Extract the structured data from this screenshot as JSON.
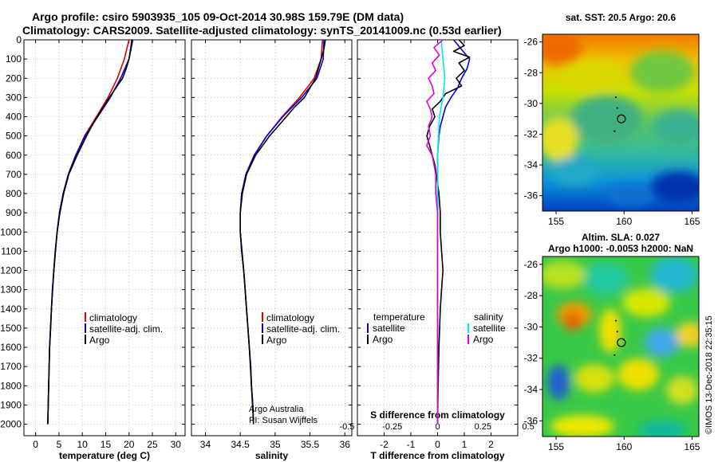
{
  "header": {
    "line1": "Argo profile: csiro 5903935_105 09-Oct-2014 30.98S 159.79E (DM data)",
    "line2": "Climatology: CARS2009. Satellite-adjusted climatology: synTS_20141009.nc (0.53d earlier)"
  },
  "credits": {
    "line1": "Argo Australia",
    "line2": "PI: Susan Wijffels",
    "imos": "©IMOS 13-Dec-2018 22:35:15"
  },
  "colors": {
    "climatology": "#e00000",
    "satellite_adj": "#0000e0",
    "argo": "#000000",
    "sat_salinity": "#00e8e8",
    "argo_salinity_diff": "#e000e0"
  },
  "chart_data": [
    {
      "type": "line",
      "title": "",
      "xlabel": "temperature (deg C)",
      "ylabel": "",
      "xlim": [
        -2.5,
        32
      ],
      "ylim": [
        2060,
        0
      ],
      "xticks": [
        0,
        5,
        10,
        15,
        20,
        25,
        30
      ],
      "yticks": [
        0,
        100,
        200,
        300,
        400,
        500,
        600,
        700,
        800,
        900,
        1000,
        1100,
        1200,
        1300,
        1400,
        1500,
        1600,
        1700,
        1800,
        1900,
        2000
      ],
      "legend": [
        "climatology",
        "satellite-adj. clim.",
        "Argo"
      ],
      "series": [
        {
          "name": "climatology",
          "depth": [
            0,
            100,
            200,
            300,
            400,
            500,
            600,
            700,
            800,
            900,
            1000,
            1100,
            1200,
            1300,
            1400,
            1500,
            1600,
            1700,
            1800,
            1900,
            2000
          ],
          "values": [
            20.0,
            19.0,
            17.5,
            15.5,
            13.0,
            10.5,
            8.6,
            7.0,
            5.9,
            5.1,
            4.6,
            4.2,
            3.9,
            3.6,
            3.4,
            3.2,
            3.0,
            2.9,
            2.8,
            2.7,
            2.6
          ]
        },
        {
          "name": "satellite-adj. clim.",
          "depth": [
            0,
            100,
            200,
            300,
            400,
            500,
            600,
            700,
            800,
            900,
            1000,
            1100,
            1200,
            1300,
            1400,
            1500,
            1600,
            1700,
            1800,
            1900,
            2000
          ],
          "values": [
            20.6,
            20.0,
            18.2,
            16.0,
            13.3,
            10.6,
            8.6,
            7.0,
            5.9,
            5.1,
            4.6,
            4.2,
            3.9,
            3.6,
            3.4,
            3.2,
            3.0,
            2.9,
            2.8,
            2.7,
            2.6
          ]
        },
        {
          "name": "Argo",
          "depth": [
            0,
            50,
            100,
            150,
            200,
            250,
            300,
            350,
            400,
            450,
            500,
            600,
            700,
            800,
            900,
            1000,
            1200,
            1400,
            1600,
            1800,
            2000
          ],
          "values": [
            20.8,
            20.4,
            20.0,
            19.4,
            18.6,
            17.2,
            15.8,
            14.5,
            13.2,
            12.0,
            10.9,
            8.9,
            7.1,
            6.0,
            5.2,
            4.6,
            3.9,
            3.4,
            3.0,
            2.8,
            2.6
          ]
        }
      ]
    },
    {
      "type": "line",
      "title": "",
      "xlabel": "salinity",
      "ylabel": "",
      "xlim": [
        33.8,
        36.1
      ],
      "ylim": [
        2060,
        0
      ],
      "xticks": [
        34,
        34.5,
        35,
        35.5,
        36
      ],
      "legend": [
        "climatology",
        "satellite-adj. clim.",
        "Argo"
      ],
      "series": [
        {
          "name": "climatology",
          "depth": [
            0,
            100,
            200,
            300,
            400,
            500,
            600,
            700,
            800,
            900,
            1000,
            1100,
            1200,
            1300,
            1400,
            1500,
            1600,
            1700,
            1800,
            1900,
            2000
          ],
          "values": [
            35.68,
            35.66,
            35.56,
            35.35,
            35.1,
            34.88,
            34.7,
            34.58,
            34.52,
            34.5,
            34.5,
            34.52,
            34.55,
            34.57,
            34.59,
            34.61,
            34.63,
            34.65,
            34.66,
            34.68,
            34.69
          ]
        },
        {
          "name": "satellite-adj. clim.",
          "depth": [
            0,
            100,
            200,
            300,
            400,
            500,
            600,
            700,
            800,
            900,
            1000,
            1100,
            1200,
            1300,
            1400,
            1500,
            1600,
            1700,
            1800,
            1900,
            2000
          ],
          "values": [
            35.7,
            35.69,
            35.6,
            35.38,
            35.11,
            34.88,
            34.7,
            34.58,
            34.52,
            34.5,
            34.5,
            34.52,
            34.55,
            34.57,
            34.59,
            34.61,
            34.63,
            34.65,
            34.66,
            34.68,
            34.69
          ]
        },
        {
          "name": "Argo",
          "depth": [
            0,
            50,
            100,
            150,
            200,
            250,
            300,
            350,
            400,
            450,
            500,
            600,
            700,
            800,
            900,
            1000,
            1200,
            1400,
            1600,
            1800,
            2000
          ],
          "values": [
            35.72,
            35.7,
            35.66,
            35.62,
            35.58,
            35.5,
            35.42,
            35.28,
            35.16,
            35.04,
            34.92,
            34.72,
            34.59,
            34.53,
            34.5,
            34.5,
            34.55,
            34.59,
            34.63,
            34.66,
            34.69
          ]
        }
      ]
    },
    {
      "type": "line",
      "title": "",
      "xlabel": "T difference from climatology",
      "xlabel_top": "S difference from climatology",
      "ylabel": "",
      "xlim": [
        -3,
        3
      ],
      "ylim": [
        2060,
        0
      ],
      "xticks": [
        -2,
        -1,
        0,
        1,
        2
      ],
      "xticks_top": [
        "-0.5",
        "-0.25",
        "0",
        "0.25",
        "0.5"
      ],
      "legend_left_title": "temperature",
      "legend_right_title": "salinity",
      "legend": [
        "satellite",
        "Argo",
        "satellite",
        "Argo"
      ],
      "series": [
        {
          "name": "T satellite",
          "depth": [
            0,
            50,
            100,
            150,
            200,
            250,
            300,
            350,
            400,
            450,
            500,
            600,
            700,
            800,
            900,
            1000,
            1200,
            1400,
            1600,
            1800,
            2000
          ],
          "values": [
            0.6,
            0.9,
            1.2,
            1.1,
            0.9,
            0.75,
            0.5,
            0.3,
            0.2,
            0.1,
            0.05,
            0,
            0,
            0,
            0,
            0,
            0,
            0,
            0,
            0,
            0
          ]
        },
        {
          "name": "T Argo",
          "depth": [
            0,
            30,
            60,
            90,
            120,
            160,
            200,
            240,
            280,
            320,
            360,
            400,
            450,
            500,
            550,
            600,
            650,
            700,
            800,
            900,
            1000,
            1100,
            1200,
            1300,
            1400,
            1600,
            1800,
            2000
          ],
          "values": [
            0.8,
            1.0,
            0.6,
            1.2,
            0.8,
            1.0,
            0.7,
            0.9,
            0.3,
            0.1,
            -0.2,
            -0.1,
            -0.3,
            -0.4,
            -0.3,
            -0.2,
            -0.1,
            -0.05,
            0.05,
            0.1,
            0.1,
            0.15,
            0.2,
            0.15,
            0.1,
            0.05,
            0.02,
            0
          ]
        },
        {
          "name": "S satellite",
          "depth": [
            0,
            100,
            200,
            300,
            400,
            600,
            800,
            1000,
            1200,
            1400,
            1600,
            1800,
            2000
          ],
          "values": [
            0.02,
            0.03,
            0.04,
            0.03,
            0.01,
            0,
            0,
            0,
            0,
            0,
            0,
            0,
            0
          ]
        },
        {
          "name": "S Argo",
          "depth": [
            0,
            40,
            80,
            120,
            160,
            200,
            240,
            280,
            320,
            360,
            400,
            450,
            500,
            550,
            600,
            650,
            700,
            800,
            900,
            1000,
            1200,
            1400,
            1600,
            1800,
            2000
          ],
          "values": [
            0.03,
            -0.02,
            0.01,
            -0.03,
            -0.01,
            -0.05,
            -0.03,
            -0.02,
            -0.06,
            -0.04,
            -0.03,
            -0.05,
            -0.04,
            -0.06,
            -0.03,
            -0.02,
            -0.01,
            -0.01,
            0,
            0,
            0,
            0,
            0,
            0,
            0
          ]
        }
      ]
    },
    {
      "type": "heatmap",
      "title": "sat. SST: 20.5 Argo: 20.6",
      "xlim": [
        154,
        165.5
      ],
      "ylim": [
        -37,
        -25.5
      ],
      "xticks": [
        155,
        160,
        165
      ],
      "yticks": [
        -26,
        -28,
        -30,
        -32,
        -34,
        -36
      ],
      "marker_position": [
        159.8,
        -31.0
      ]
    },
    {
      "type": "heatmap",
      "title": "Altim. SLA: 0.027",
      "subtitle": "Argo h1000: -0.0053 h2000: NaN",
      "xlim": [
        154,
        165.5
      ],
      "ylim": [
        -37,
        -25.5
      ],
      "xticks": [
        155,
        160,
        165
      ],
      "yticks": [
        -26,
        -28,
        -30,
        -32,
        -34,
        -36
      ],
      "marker_position": [
        159.8,
        -31.0
      ]
    }
  ]
}
